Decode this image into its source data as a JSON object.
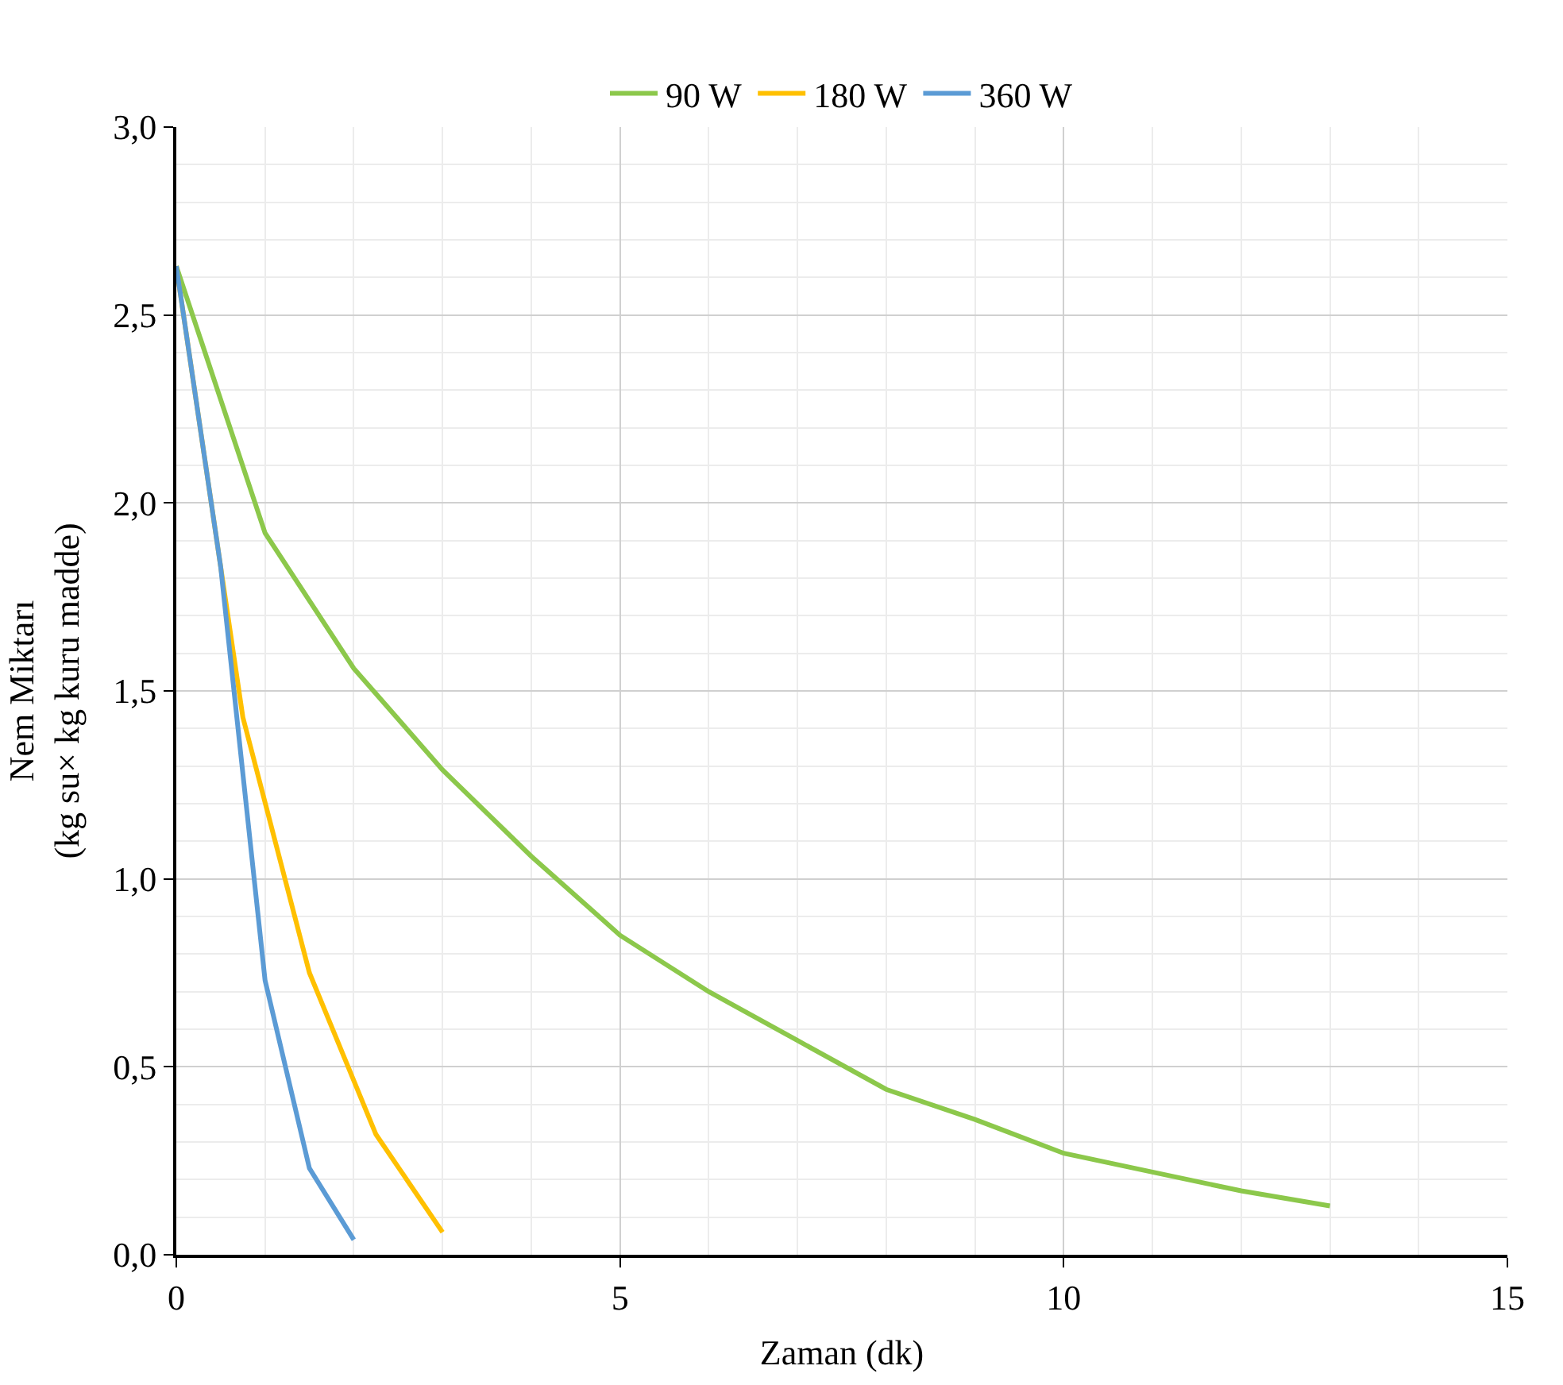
{
  "chart_data": {
    "type": "line",
    "xlabel": "Zaman (dk)",
    "ylabel": "Nem Miktarı\n(kg su× kg kuru madde)",
    "series": [
      {
        "name": "90 W",
        "color": "#8cc84b",
        "x": [
          0,
          1,
          2,
          3,
          4,
          5,
          6,
          7,
          8,
          9,
          10,
          11,
          12,
          13
        ],
        "values": [
          2.63,
          1.92,
          1.56,
          1.29,
          1.06,
          0.85,
          0.7,
          0.57,
          0.44,
          0.36,
          0.27,
          0.22,
          0.17,
          0.13
        ]
      },
      {
        "name": "180 W",
        "color": "#ffc000",
        "x": [
          0,
          0.75,
          1.5,
          2.25,
          3
        ],
        "values": [
          2.63,
          1.43,
          0.75,
          0.32,
          0.06
        ]
      },
      {
        "name": "360 W",
        "color": "#5b9bd5",
        "x": [
          0,
          0.5,
          1,
          1.5,
          2
        ],
        "values": [
          2.63,
          1.83,
          0.73,
          0.23,
          0.04
        ]
      }
    ],
    "xlim": [
      0,
      15
    ],
    "xticks": [
      0,
      5,
      10,
      15
    ],
    "ylim": [
      0,
      3
    ],
    "yticks": [
      {
        "value": 0,
        "label": "0,0"
      },
      {
        "value": 0.5,
        "label": "0,5"
      },
      {
        "value": 1,
        "label": "1,0"
      },
      {
        "value": 1.5,
        "label": "1,5"
      },
      {
        "value": 2,
        "label": "2,0"
      },
      {
        "value": 2.5,
        "label": "2,5"
      },
      {
        "value": 3,
        "label": "3,0"
      }
    ],
    "grid": true,
    "legend": "top",
    "marker": "none",
    "line_style": "solid"
  }
}
